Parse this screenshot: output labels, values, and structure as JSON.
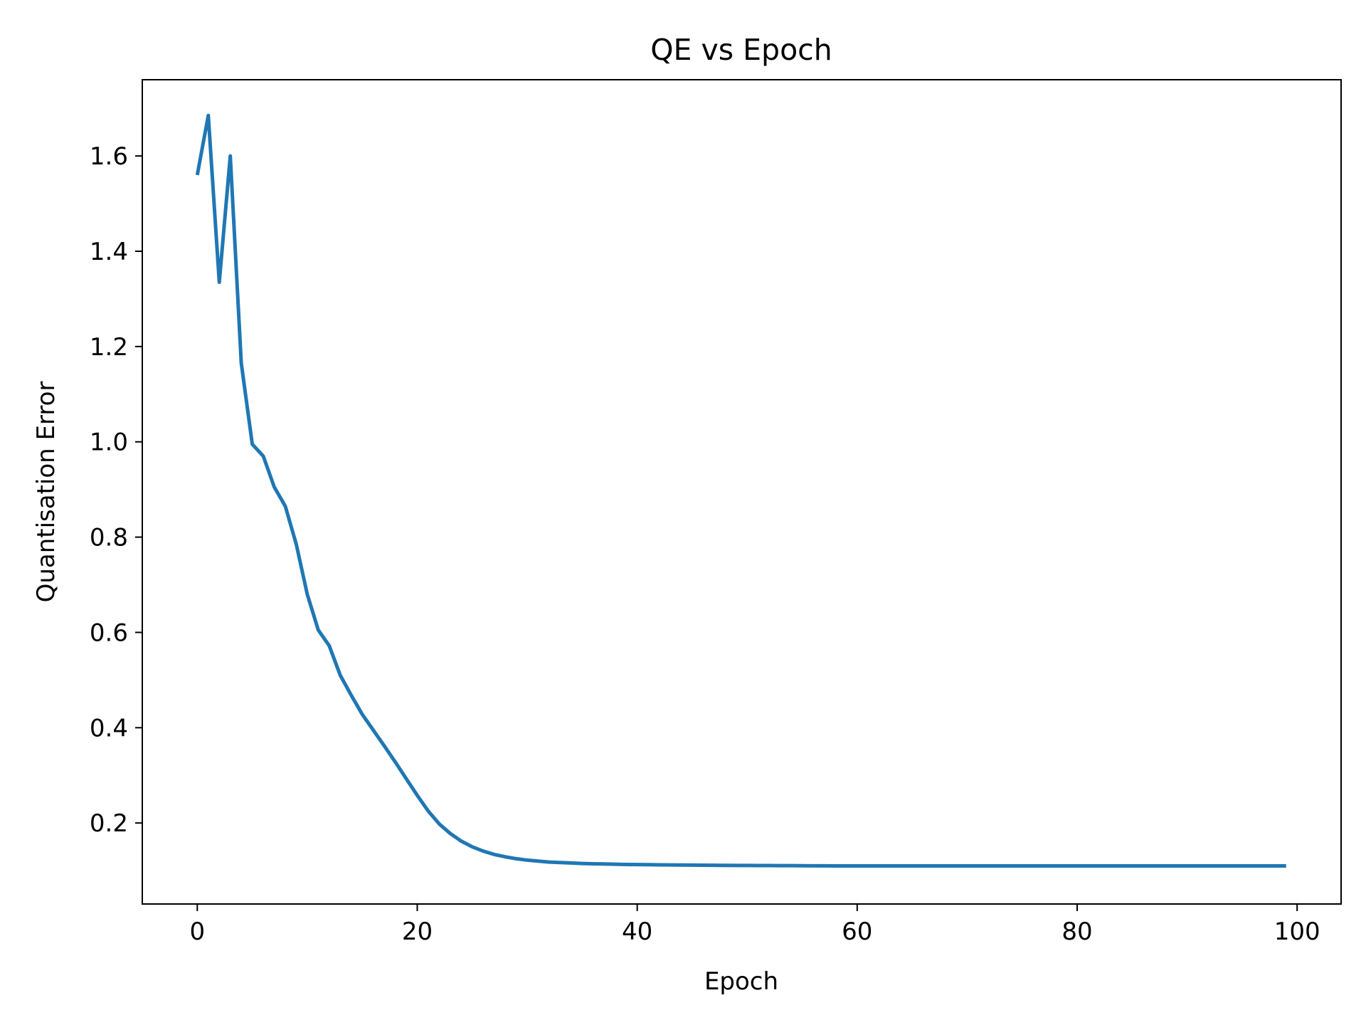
{
  "chart_data": {
    "type": "line",
    "title": "QE vs Epoch",
    "xlabel": "Epoch",
    "ylabel": "Quantisation Error",
    "xlim": [
      -5,
      104
    ],
    "ylim": [
      0.03,
      1.76
    ],
    "xticks": [
      0,
      20,
      40,
      60,
      80,
      100
    ],
    "yticks": [
      0.2,
      0.4,
      0.6,
      0.8,
      1.0,
      1.2,
      1.4,
      1.6
    ],
    "xtick_labels": [
      "0",
      "20",
      "40",
      "60",
      "80",
      "100"
    ],
    "ytick_labels": [
      "0.2",
      "0.4",
      "0.6",
      "0.8",
      "1.0",
      "1.2",
      "1.4",
      "1.6"
    ],
    "grid": false,
    "line_color": "#1f77b4",
    "series": [
      {
        "x": [
          0,
          1,
          2,
          3,
          4,
          5,
          6,
          7,
          8,
          9,
          10,
          11,
          12,
          13,
          14,
          15,
          16,
          17,
          18,
          19,
          20,
          21,
          22,
          23,
          24,
          25,
          26,
          27,
          28,
          29,
          30,
          31,
          32,
          33,
          34,
          35,
          36,
          37,
          38,
          39,
          40,
          41,
          42,
          43,
          44,
          45,
          46,
          47,
          48,
          49,
          50,
          51,
          52,
          53,
          54,
          55,
          56,
          57,
          58,
          59,
          60,
          61,
          62,
          63,
          64,
          65,
          66,
          67,
          68,
          69,
          70,
          71,
          72,
          73,
          74,
          75,
          76,
          77,
          78,
          79,
          80,
          81,
          82,
          83,
          84,
          85,
          86,
          87,
          88,
          89,
          90,
          91,
          92,
          93,
          94,
          95,
          96,
          97,
          98,
          99
        ],
        "values": [
          1.56,
          1.685,
          1.335,
          1.6,
          1.165,
          0.995,
          0.97,
          0.905,
          0.865,
          0.785,
          0.68,
          0.605,
          0.572,
          0.51,
          0.468,
          0.428,
          0.395,
          0.362,
          0.328,
          0.293,
          0.258,
          0.225,
          0.198,
          0.178,
          0.162,
          0.15,
          0.141,
          0.134,
          0.129,
          0.125,
          0.122,
          0.12,
          0.118,
          0.117,
          0.116,
          0.115,
          0.1145,
          0.114,
          0.1135,
          0.113,
          0.1127,
          0.1125,
          0.1122,
          0.112,
          0.1118,
          0.1116,
          0.1114,
          0.1112,
          0.111,
          0.1109,
          0.1108,
          0.1107,
          0.1106,
          0.1105,
          0.1104,
          0.1103,
          0.1102,
          0.1101,
          0.11,
          0.11,
          0.11,
          0.11,
          0.11,
          0.11,
          0.11,
          0.11,
          0.11,
          0.11,
          0.11,
          0.11,
          0.11,
          0.11,
          0.11,
          0.11,
          0.11,
          0.11,
          0.11,
          0.11,
          0.11,
          0.11,
          0.11,
          0.11,
          0.11,
          0.11,
          0.11,
          0.11,
          0.11,
          0.11,
          0.11,
          0.11,
          0.11,
          0.11,
          0.11,
          0.11,
          0.11,
          0.11,
          0.11,
          0.11,
          0.11,
          0.11
        ]
      }
    ]
  }
}
